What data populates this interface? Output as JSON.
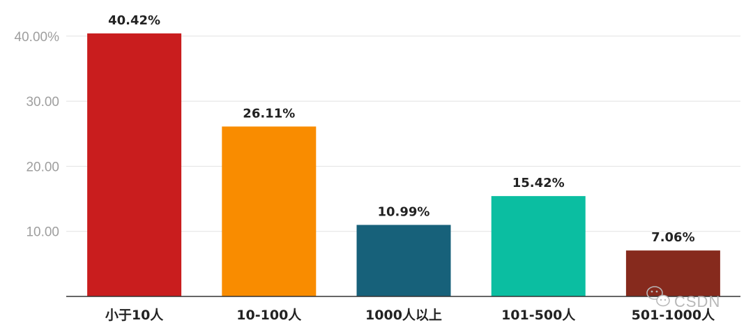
{
  "chart_data": {
    "type": "bar",
    "categories": [
      "小于10人",
      "10-100人",
      "1000人以上",
      "101-500人",
      "501-1000人"
    ],
    "values": [
      40.42,
      26.11,
      10.99,
      15.42,
      7.06
    ],
    "data_labels": [
      "40.42%",
      "26.11%",
      "10.99%",
      "15.42%",
      "7.06%"
    ],
    "colors": [
      "#c91d1e",
      "#f98c00",
      "#17617a",
      "#0bbea1",
      "#862a1d"
    ],
    "y_ticks": [
      {
        "value": 10,
        "label": "10.00"
      },
      {
        "value": 20,
        "label": "20.00"
      },
      {
        "value": 30,
        "label": "30.00"
      },
      {
        "value": 40,
        "label": "40.00%"
      }
    ],
    "ylim": [
      0,
      45
    ],
    "grid": true,
    "title": "",
    "xlabel": "",
    "ylabel": ""
  },
  "watermark": {
    "text": "CSDN",
    "icon": "wechat-icon"
  }
}
